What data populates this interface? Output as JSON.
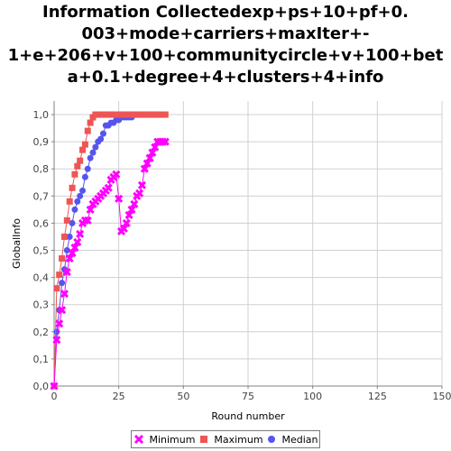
{
  "chart_data": {
    "type": "line",
    "title_lines": [
      "Information Collectedexp+ps+10+pf+0.",
      "003+mode+carriers+maxIter+-",
      "1+e+206+v+100+communitycircle+v+100+bet",
      "a+0.1+degree+4+clusters+4+info"
    ],
    "xlabel": "Round number",
    "ylabel": "GlobalInfo",
    "xlim": [
      0,
      150
    ],
    "ylim": [
      0,
      1.05
    ],
    "x_ticks": [
      "0",
      "25",
      "50",
      "75",
      "100",
      "125",
      "150"
    ],
    "y_ticks": [
      "0,0",
      "0,1",
      "0,2",
      "0,3",
      "0,4",
      "0,5",
      "0,6",
      "0,7",
      "0,8",
      "0,9",
      "1,0"
    ],
    "grid": true,
    "legend_position": "bottom",
    "series": [
      {
        "name": "Minimum",
        "color": "#ff00ff",
        "marker": "x",
        "x": [
          0,
          1,
          2,
          3,
          4,
          5,
          6,
          7,
          8,
          9,
          10,
          11,
          12,
          13,
          14,
          15,
          16,
          17,
          18,
          19,
          20,
          21,
          22,
          23,
          24,
          25,
          26,
          27,
          28,
          29,
          30,
          31,
          32,
          33,
          34,
          35,
          36,
          37,
          38,
          39,
          40,
          41,
          42,
          43
        ],
        "y": [
          0.0,
          0.17,
          0.23,
          0.28,
          0.34,
          0.42,
          0.47,
          0.49,
          0.51,
          0.53,
          0.56,
          0.6,
          0.61,
          0.61,
          0.65,
          0.67,
          0.68,
          0.69,
          0.7,
          0.71,
          0.72,
          0.73,
          0.76,
          0.77,
          0.78,
          0.69,
          0.57,
          0.58,
          0.6,
          0.63,
          0.65,
          0.67,
          0.7,
          0.71,
          0.74,
          0.8,
          0.82,
          0.84,
          0.86,
          0.88,
          0.9,
          0.9,
          0.9,
          0.9
        ]
      },
      {
        "name": "Maximum",
        "color": "#ee5555",
        "marker": "square",
        "x": [
          0,
          1,
          2,
          3,
          4,
          5,
          6,
          7,
          8,
          9,
          10,
          11,
          12,
          13,
          14,
          15,
          16,
          17,
          18,
          19,
          20,
          21,
          22,
          23,
          24,
          25,
          26,
          27,
          28,
          29,
          30,
          31,
          32,
          33,
          34,
          35,
          36,
          37,
          38,
          39,
          40,
          41,
          42,
          43
        ],
        "y": [
          0.0,
          0.36,
          0.41,
          0.47,
          0.55,
          0.61,
          0.68,
          0.73,
          0.78,
          0.81,
          0.83,
          0.87,
          0.89,
          0.94,
          0.97,
          0.99,
          1.0,
          1.0,
          1.0,
          1.0,
          1.0,
          1.0,
          1.0,
          1.0,
          1.0,
          1.0,
          1.0,
          1.0,
          1.0,
          1.0,
          1.0,
          1.0,
          1.0,
          1.0,
          1.0,
          1.0,
          1.0,
          1.0,
          1.0,
          1.0,
          1.0,
          1.0,
          1.0,
          1.0
        ]
      },
      {
        "name": "Median",
        "color": "#5555ee",
        "marker": "circle",
        "x": [
          0,
          1,
          2,
          3,
          4,
          5,
          6,
          7,
          8,
          9,
          10,
          11,
          12,
          13,
          14,
          15,
          16,
          17,
          18,
          19,
          20,
          21,
          22,
          23,
          24,
          25,
          26,
          27,
          28,
          29,
          30
        ],
        "y": [
          0.0,
          0.2,
          0.28,
          0.38,
          0.43,
          0.5,
          0.55,
          0.6,
          0.65,
          0.68,
          0.7,
          0.72,
          0.77,
          0.8,
          0.84,
          0.86,
          0.88,
          0.9,
          0.91,
          0.93,
          0.96,
          0.96,
          0.97,
          0.97,
          0.98,
          0.98,
          0.99,
          0.99,
          0.99,
          0.99,
          0.99
        ]
      }
    ]
  }
}
